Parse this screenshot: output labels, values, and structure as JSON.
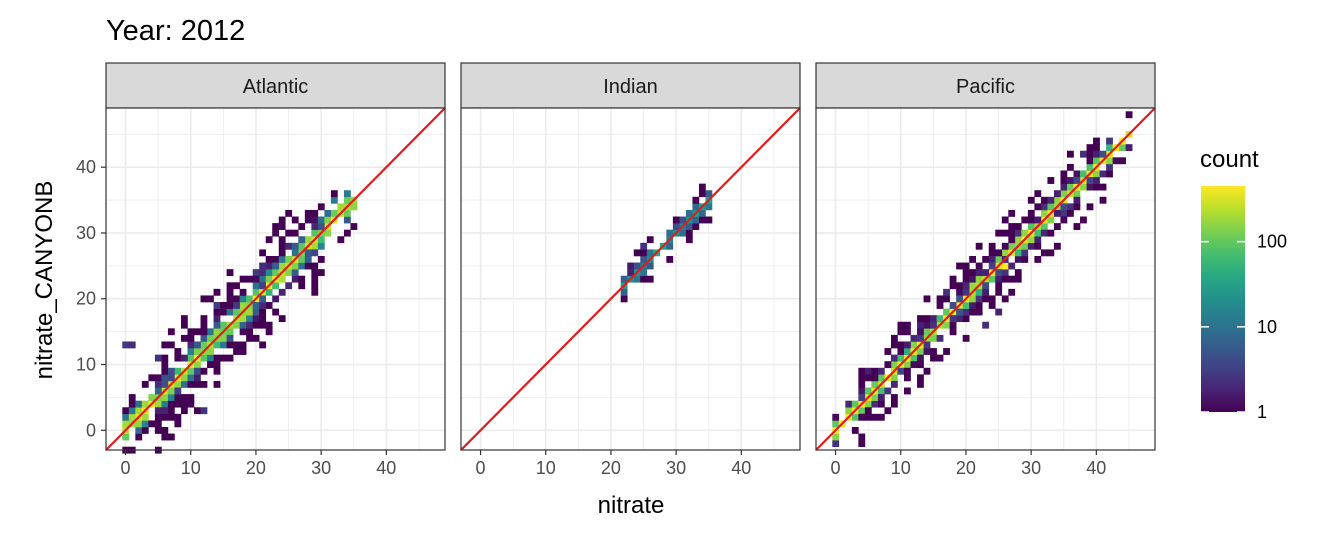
{
  "chart_data": {
    "type": "heatmap",
    "title": "Year: 2012",
    "xlabel": "nitrate",
    "ylabel": "nitrate_CANYONB",
    "xlim": [
      -3,
      49
    ],
    "ylim": [
      -3,
      49
    ],
    "x_ticks": [
      0,
      10,
      20,
      30,
      40
    ],
    "y_ticks": [
      0,
      10,
      20,
      30,
      40
    ],
    "grid": true,
    "reference_line": {
      "type": "identity",
      "color": "#e41a1c"
    },
    "legend": {
      "title": "count",
      "scale": "log10",
      "range": [
        1,
        450
      ],
      "ticks": [
        1,
        10,
        100
      ],
      "tick_labels": [
        "1",
        "10",
        "100"
      ],
      "colormap": "viridis",
      "placement": "right"
    },
    "facets": [
      {
        "name": "Atlantic",
        "density_bands": [
          {
            "from": 0,
            "to": 35,
            "spread": 1.3,
            "peak_count": 300
          },
          {
            "from": 5,
            "to": 30,
            "spread": 2.5,
            "peak_count": 10
          }
        ],
        "outliers": [
          [
            0,
            13
          ],
          [
            1,
            13
          ],
          [
            4.5,
            11
          ],
          [
            12,
            3
          ],
          [
            10,
            13
          ],
          [
            16,
            15
          ],
          [
            14,
            19
          ],
          [
            20,
            24
          ],
          [
            21,
            25
          ],
          [
            28,
            32
          ],
          [
            29,
            31
          ],
          [
            34,
            33
          ]
        ]
      },
      {
        "name": "Indian",
        "density_bands": [
          {
            "from": 22,
            "to": 35,
            "spread": 1.0,
            "peak_count": 30
          }
        ],
        "outliers": [
          [
            22.5,
            24.5
          ],
          [
            23,
            24
          ],
          [
            24,
            24.5
          ],
          [
            25,
            28
          ]
        ]
      },
      {
        "name": "Pacific",
        "density_bands": [
          {
            "from": 0,
            "to": 45,
            "spread": 1.0,
            "peak_count": 450
          },
          {
            "from": 3,
            "to": 42,
            "spread": 2.0,
            "peak_count": 5
          }
        ],
        "outliers": [
          [
            5,
            9
          ],
          [
            8,
            12
          ],
          [
            15,
            14
          ],
          [
            17,
            21
          ],
          [
            21,
            20
          ],
          [
            23,
            16
          ],
          [
            24,
            26
          ],
          [
            25,
            18
          ],
          [
            32,
            32
          ],
          [
            35,
            33
          ],
          [
            38,
            42
          ]
        ]
      }
    ]
  }
}
